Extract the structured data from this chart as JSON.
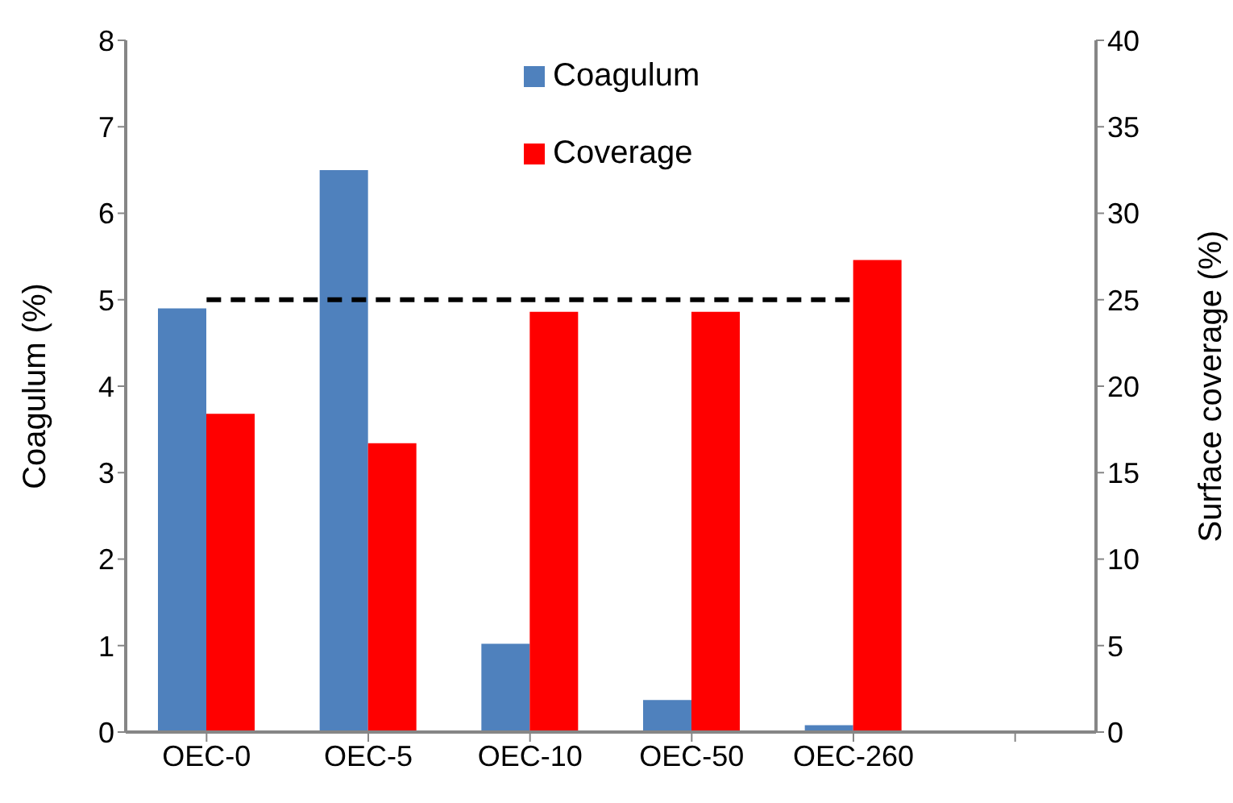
{
  "chart_data": {
    "type": "bar",
    "categories": [
      "OEC-0",
      "OEC-5",
      "OEC-10",
      "OEC-50",
      "OEC-260",
      null
    ],
    "ylabel": "Coagulum (%)",
    "y2label": "Surface coverage (%)",
    "ylim": [
      0,
      8
    ],
    "yticks": [
      0,
      1,
      2,
      3,
      4,
      5,
      6,
      7,
      8
    ],
    "y2lim": [
      0,
      40
    ],
    "y2ticks": [
      0,
      5,
      10,
      15,
      20,
      25,
      30,
      35,
      40
    ],
    "grid": false,
    "legend": "top",
    "series": [
      {
        "name": "Coagulum",
        "color": "#4f81bd",
        "values": [
          4.9,
          6.5,
          1.02,
          0.37,
          0.08,
          null
        ]
      },
      {
        "name": "Coverage",
        "color": "#ff0000",
        "axis": "y2",
        "values": [
          18.4,
          16.7,
          24.3,
          24.3,
          27.3,
          null
        ]
      },
      {
        "type": "line",
        "color": "#000000",
        "line_style": "dashed",
        "marker": "none",
        "values": [
          5,
          5,
          5,
          5,
          5,
          null
        ]
      }
    ]
  }
}
